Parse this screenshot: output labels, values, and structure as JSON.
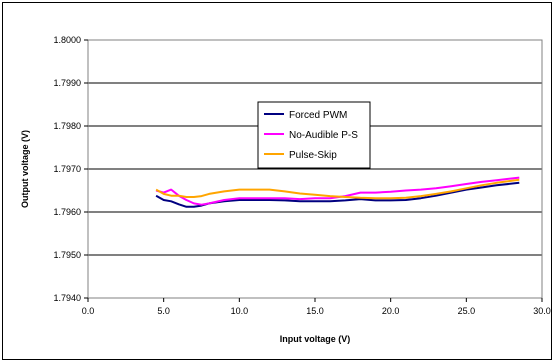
{
  "chart_data": {
    "type": "line",
    "title": "",
    "xlabel": "Input voltage (V)",
    "ylabel": "Output voltage (V)",
    "xlim": [
      0,
      30
    ],
    "ylim": [
      1.794,
      1.8
    ],
    "x_ticks": [
      0,
      5,
      10,
      15,
      20,
      25,
      30
    ],
    "x_tick_labels": [
      "0.0",
      "5.0",
      "10.0",
      "15.0",
      "20.0",
      "25.0",
      "30.0"
    ],
    "y_ticks": [
      1.794,
      1.795,
      1.796,
      1.797,
      1.798,
      1.799,
      1.8
    ],
    "y_tick_labels": [
      "1.7940",
      "1.7950",
      "1.7960",
      "1.7970",
      "1.7980",
      "1.7990",
      "1.8000"
    ],
    "grid": "horizontal",
    "legend_position": "center",
    "series": [
      {
        "name": "Forced PWM",
        "color": "#000080",
        "x": [
          4.5,
          5.0,
          5.5,
          6.0,
          6.5,
          7.0,
          7.5,
          8.0,
          9.0,
          10.0,
          11.0,
          12.0,
          13.0,
          14.0,
          15.0,
          16.0,
          17.0,
          18.0,
          19.0,
          20.0,
          21.0,
          22.0,
          23.0,
          24.0,
          25.0,
          26.0,
          27.0,
          28.5
        ],
        "y": [
          1.79638,
          1.79628,
          1.79625,
          1.79618,
          1.79612,
          1.79612,
          1.79615,
          1.7962,
          1.79625,
          1.79628,
          1.79628,
          1.79628,
          1.79627,
          1.79625,
          1.79625,
          1.79625,
          1.79627,
          1.7963,
          1.79627,
          1.79627,
          1.79628,
          1.79632,
          1.79638,
          1.79645,
          1.79652,
          1.79657,
          1.79662,
          1.79668
        ]
      },
      {
        "name": "No-Audible P-S",
        "color": "#ff00ff",
        "x": [
          4.5,
          5.0,
          5.5,
          6.0,
          6.5,
          7.0,
          7.5,
          8.0,
          9.0,
          10.0,
          11.0,
          12.0,
          13.0,
          14.0,
          15.0,
          16.0,
          17.0,
          18.0,
          19.0,
          20.0,
          21.0,
          22.0,
          23.0,
          24.0,
          25.0,
          26.0,
          27.0,
          28.5
        ],
        "y": [
          1.7965,
          1.79645,
          1.79652,
          1.79638,
          1.79628,
          1.7962,
          1.79617,
          1.7962,
          1.79628,
          1.79632,
          1.79632,
          1.79632,
          1.79632,
          1.7963,
          1.79632,
          1.79632,
          1.79637,
          1.79645,
          1.79645,
          1.79647,
          1.7965,
          1.79652,
          1.79655,
          1.7966,
          1.79665,
          1.7967,
          1.79674,
          1.7968
        ]
      },
      {
        "name": "Pulse-Skip",
        "color": "#ffa500",
        "x": [
          4.5,
          5.0,
          5.5,
          6.0,
          6.5,
          7.0,
          7.5,
          8.0,
          9.0,
          10.0,
          11.0,
          12.0,
          13.0,
          14.0,
          15.0,
          16.0,
          17.0,
          18.0,
          19.0,
          20.0,
          21.0,
          22.0,
          23.0,
          24.0,
          25.0,
          26.0,
          27.0,
          28.5
        ],
        "y": [
          1.79652,
          1.79642,
          1.79638,
          1.79638,
          1.79635,
          1.79635,
          1.79637,
          1.79642,
          1.79648,
          1.79652,
          1.79652,
          1.79652,
          1.79648,
          1.79643,
          1.7964,
          1.79637,
          1.79635,
          1.79633,
          1.79632,
          1.79632,
          1.79633,
          1.79637,
          1.79642,
          1.79648,
          1.79655,
          1.79662,
          1.79668,
          1.79675
        ]
      }
    ]
  }
}
